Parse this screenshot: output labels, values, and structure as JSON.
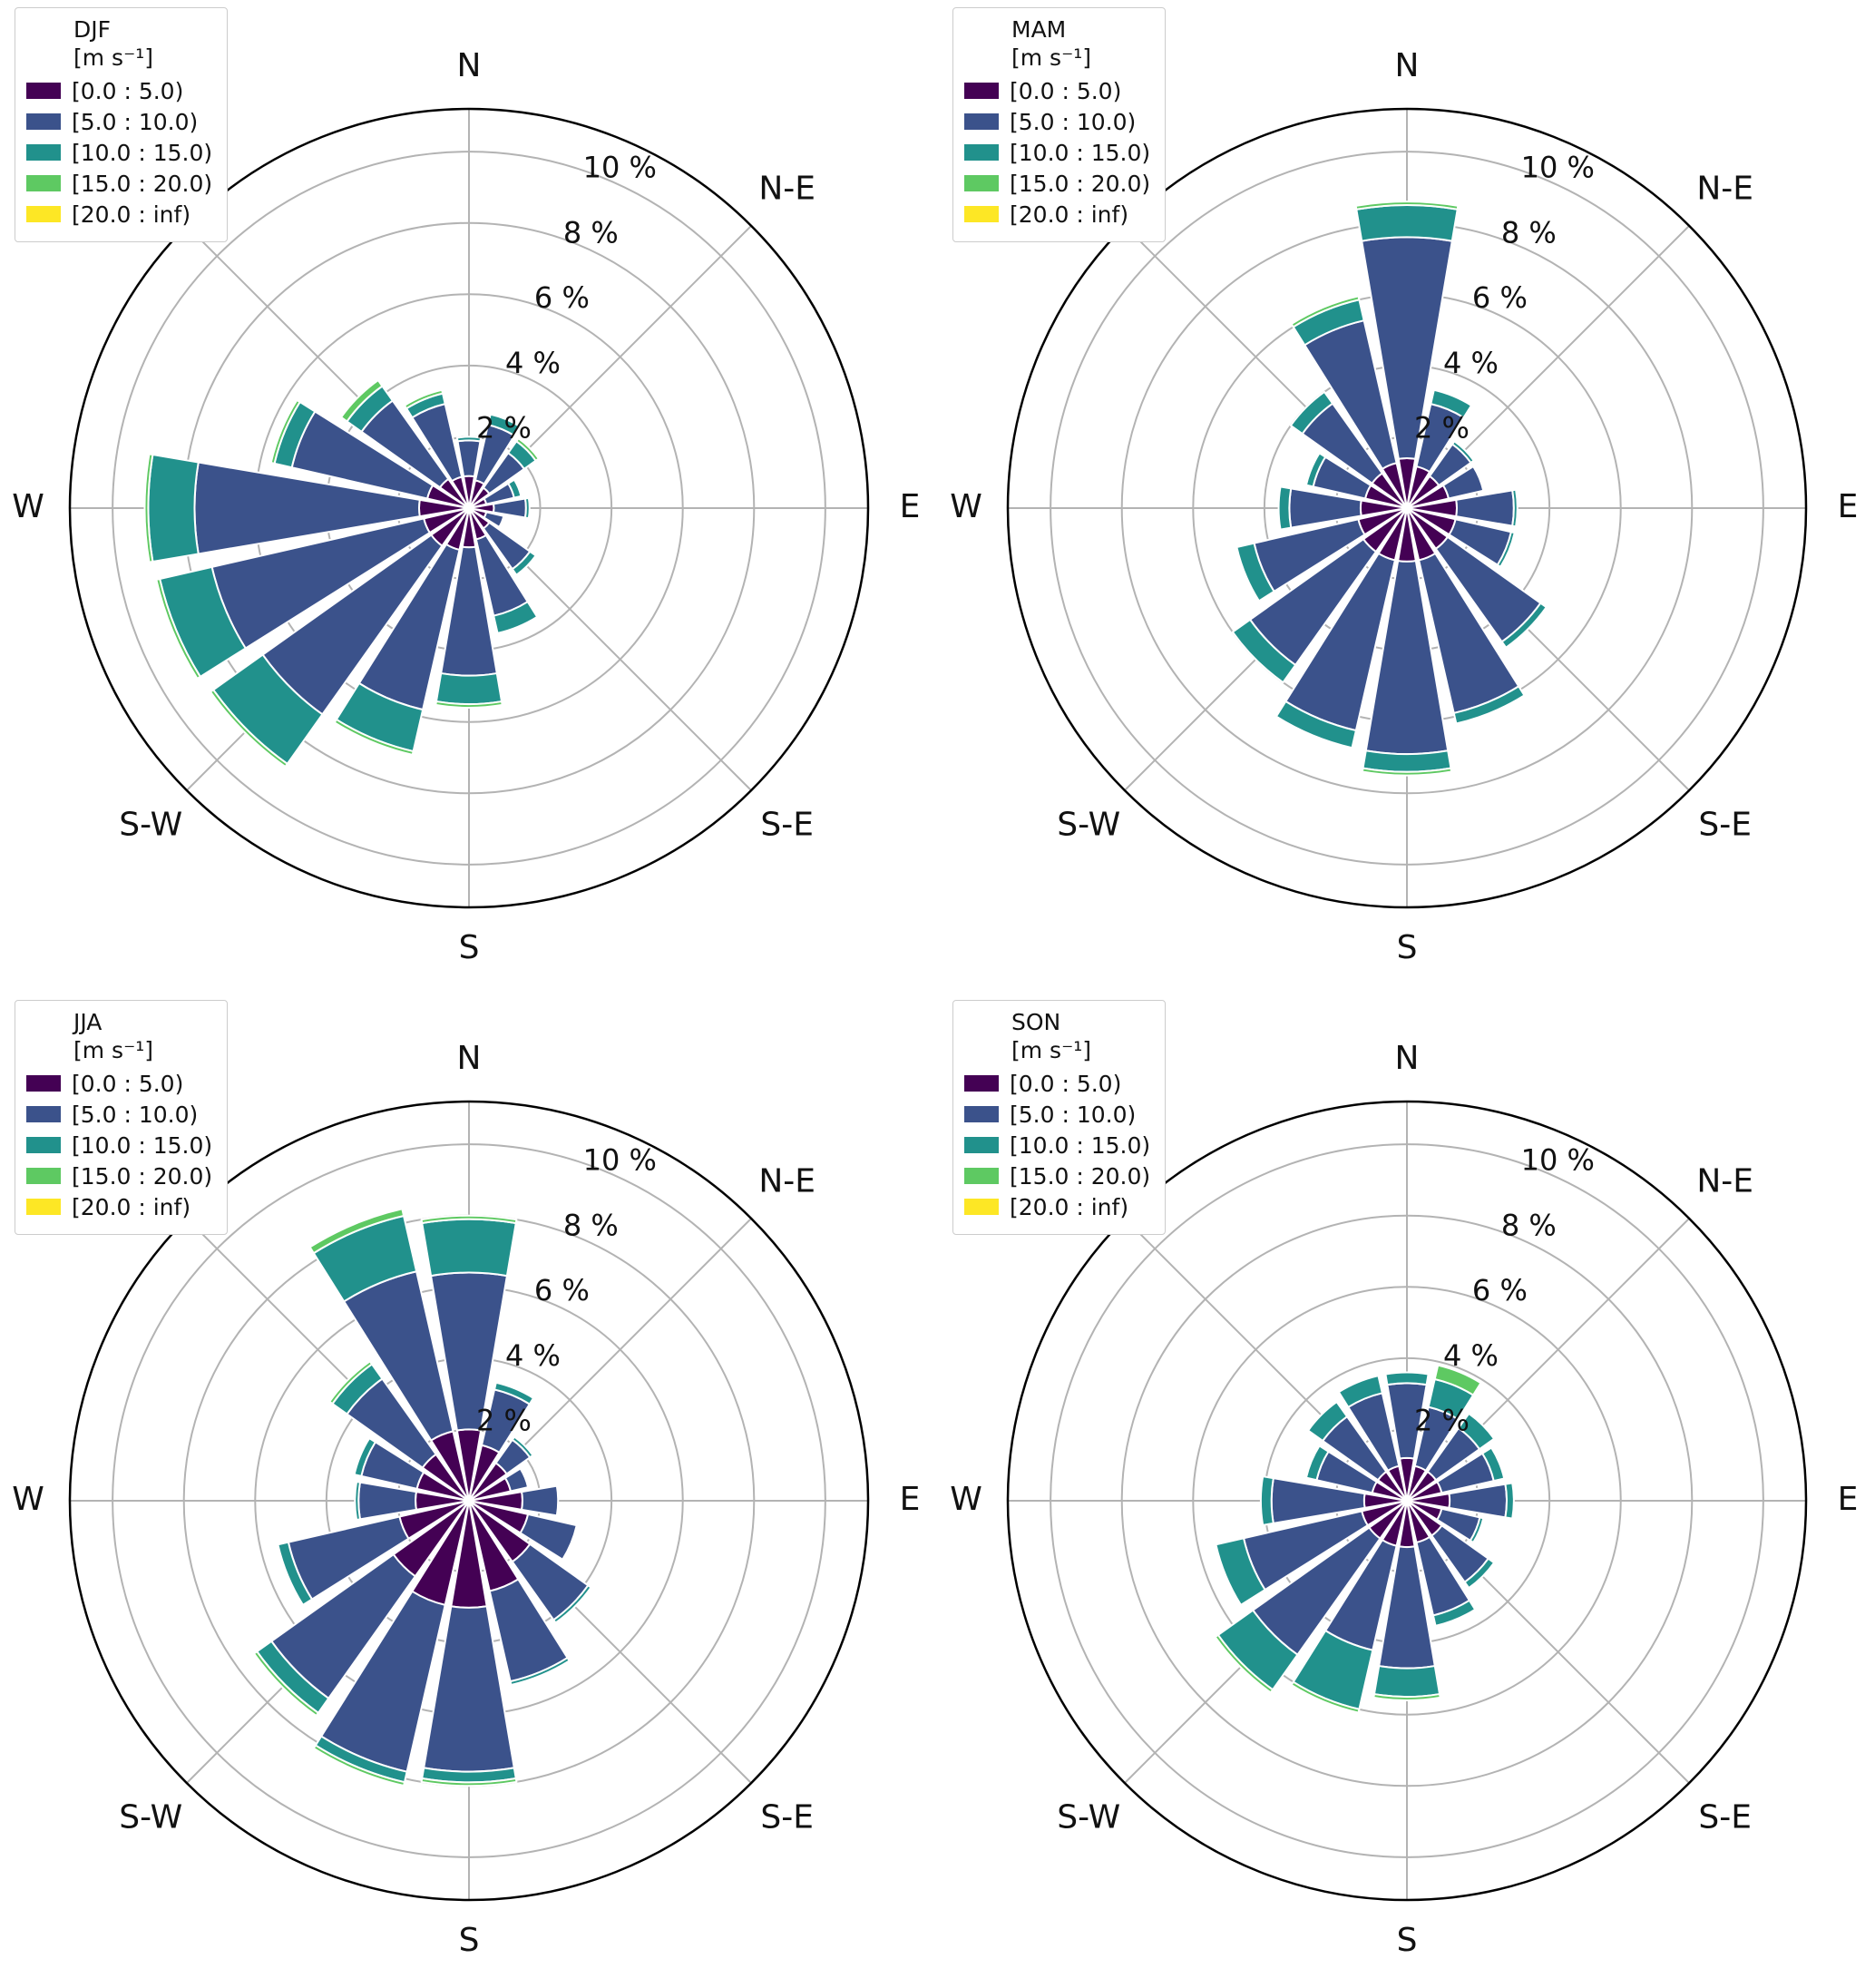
{
  "page": {
    "background": "#ffffff"
  },
  "legend": {
    "units_label": "[m s⁻¹]",
    "bins": [
      {
        "label": "[0.0 : 5.0)",
        "color": "#440154"
      },
      {
        "label": "[5.0 : 10.0)",
        "color": "#3b528b"
      },
      {
        "label": "[10.0 : 15.0)",
        "color": "#21918c"
      },
      {
        "label": "[15.0 : 20.0)",
        "color": "#5ec962"
      },
      {
        "label": "[20.0 : inf)",
        "color": "#fde725"
      }
    ]
  },
  "axes": {
    "ring_ticks": [
      2,
      4,
      6,
      8,
      10
    ],
    "ring_tick_labels": [
      "2 %",
      "4 %",
      "6 %",
      "8 %",
      "10 %"
    ],
    "rmax_percent": 11.2,
    "ring_label_azimuth_deg": 24,
    "grid_color": "#b3b3b3",
    "outline_color": "#000000",
    "direction_labels": [
      {
        "text": "N",
        "deg": 0
      },
      {
        "text": "N-E",
        "deg": 45
      },
      {
        "text": "E",
        "deg": 90
      },
      {
        "text": "S-E",
        "deg": 135
      },
      {
        "text": "S",
        "deg": 180
      },
      {
        "text": "S-W",
        "deg": 225
      },
      {
        "text": "W",
        "deg": 270
      }
    ]
  },
  "chart_data": [
    {
      "type": "bar",
      "subtype": "windrose-polar-stacked",
      "season": "DJF",
      "units": "[m s⁻¹]",
      "r_unit": "percent",
      "rlim": [
        0,
        11.2
      ],
      "grid": true,
      "legend_position": "top-left",
      "directions": [
        "N",
        "NNE",
        "NE",
        "ENE",
        "E",
        "ESE",
        "SE",
        "SSE",
        "S",
        "SSW",
        "SW",
        "WSW",
        "W",
        "WNW",
        "NW",
        "NNW"
      ],
      "series": [
        {
          "name": "[0.0 : 5.0)",
          "color": "#440154",
          "values": [
            0.9,
            0.8,
            0.7,
            0.5,
            0.7,
            0.5,
            0.7,
            0.9,
            1.1,
            1.2,
            1.3,
            1.3,
            1.4,
            1.2,
            1.0,
            0.9
          ]
        },
        {
          "name": "[5.0 : 10.0)",
          "color": "#3b528b",
          "values": [
            1.0,
            1.6,
            1.2,
            0.8,
            0.9,
            0.5,
            1.4,
            2.2,
            3.6,
            4.6,
            5.8,
            6.1,
            6.3,
            3.9,
            2.7,
            2.1
          ]
        },
        {
          "name": "[10.0 : 15.0)",
          "color": "#21918c",
          "values": [
            0.1,
            0.3,
            0.4,
            0.2,
            0.1,
            0.0,
            0.2,
            0.5,
            0.8,
            1.2,
            1.7,
            1.5,
            1.3,
            0.5,
            0.5,
            0.3
          ]
        },
        {
          "name": "[15.0 : 20.0)",
          "color": "#5ec962",
          "values": [
            0.0,
            0.0,
            0.1,
            0.0,
            0.0,
            0.0,
            0.0,
            0.0,
            0.1,
            0.1,
            0.1,
            0.1,
            0.1,
            0.1,
            0.2,
            0.1
          ]
        },
        {
          "name": "[20.0 : inf)",
          "color": "#fde725",
          "values": [
            0,
            0,
            0,
            0,
            0,
            0,
            0,
            0,
            0,
            0,
            0,
            0,
            0,
            0,
            0,
            0
          ]
        }
      ]
    },
    {
      "type": "bar",
      "subtype": "windrose-polar-stacked",
      "season": "MAM",
      "units": "[m s⁻¹]",
      "r_unit": "percent",
      "rlim": [
        0,
        11.2
      ],
      "grid": true,
      "legend_position": "top-left",
      "directions": [
        "N",
        "NNE",
        "NE",
        "ENE",
        "E",
        "ESE",
        "SE",
        "SSE",
        "S",
        "SSW",
        "SW",
        "WSW",
        "W",
        "WNW",
        "NW",
        "NNW"
      ],
      "series": [
        {
          "name": "[0.0 : 5.0)",
          "color": "#440154",
          "values": [
            1.4,
            1.2,
            1.1,
            1.2,
            1.4,
            1.4,
            1.4,
            1.5,
            1.5,
            1.5,
            1.5,
            1.4,
            1.3,
            1.2,
            1.2,
            1.3
          ]
        },
        {
          "name": "[5.0 : 10.0)",
          "color": "#3b528b",
          "values": [
            6.2,
            1.8,
            1.1,
            1.0,
            1.6,
            1.6,
            3.2,
            4.4,
            5.4,
            4.9,
            3.9,
            3.0,
            2.0,
            1.5,
            2.4,
            4.1
          ]
        },
        {
          "name": "[10.0 : 15.0)",
          "color": "#21918c",
          "values": [
            0.9,
            0.4,
            0.1,
            0.0,
            0.1,
            0.1,
            0.2,
            0.3,
            0.5,
            0.5,
            0.6,
            0.5,
            0.3,
            0.2,
            0.4,
            0.6
          ]
        },
        {
          "name": "[15.0 : 20.0)",
          "color": "#5ec962",
          "values": [
            0.1,
            0.0,
            0.0,
            0.0,
            0.0,
            0.0,
            0.0,
            0.0,
            0.1,
            0.0,
            0.0,
            0.0,
            0.0,
            0.0,
            0.0,
            0.1
          ]
        },
        {
          "name": "[20.0 : inf)",
          "color": "#fde725",
          "values": [
            0,
            0,
            0,
            0,
            0,
            0,
            0,
            0,
            0,
            0,
            0,
            0,
            0,
            0,
            0,
            0
          ]
        }
      ]
    },
    {
      "type": "bar",
      "subtype": "windrose-polar-stacked",
      "season": "JJA",
      "units": "[m s⁻¹]",
      "r_unit": "percent",
      "rlim": [
        0,
        11.2
      ],
      "grid": true,
      "legend_position": "top-left",
      "directions": [
        "N",
        "NNE",
        "NE",
        "ENE",
        "E",
        "ESE",
        "SE",
        "SSE",
        "S",
        "SSW",
        "SW",
        "WSW",
        "W",
        "WNW",
        "NW",
        "NNW"
      ],
      "series": [
        {
          "name": "[0.0 : 5.0)",
          "color": "#440154",
          "values": [
            2.0,
            1.6,
            1.3,
            1.2,
            1.5,
            1.7,
            2.1,
            2.6,
            3.0,
            3.0,
            2.6,
            2.0,
            1.5,
            1.5,
            1.6,
            2.0
          ]
        },
        {
          "name": "[5.0 : 10.0)",
          "color": "#3b528b",
          "values": [
            4.4,
            1.6,
            0.8,
            0.5,
            1.0,
            1.4,
            2.0,
            2.6,
            4.6,
            4.8,
            4.2,
            3.2,
            1.6,
            1.6,
            2.6,
            4.6
          ]
        },
        {
          "name": "[10.0 : 15.0)",
          "color": "#21918c",
          "values": [
            1.5,
            0.2,
            0.1,
            0.0,
            0.0,
            0.0,
            0.1,
            0.1,
            0.3,
            0.3,
            0.5,
            0.3,
            0.1,
            0.2,
            0.5,
            1.6
          ]
        },
        {
          "name": "[15.0 : 20.0)",
          "color": "#5ec962",
          "values": [
            0.1,
            0.0,
            0.0,
            0.0,
            0.0,
            0.0,
            0.0,
            0.0,
            0.1,
            0.1,
            0.1,
            0.0,
            0.0,
            0.0,
            0.1,
            0.2
          ]
        },
        {
          "name": "[20.0 : inf)",
          "color": "#fde725",
          "values": [
            0,
            0,
            0,
            0,
            0,
            0,
            0,
            0,
            0,
            0,
            0,
            0,
            0,
            0,
            0,
            0
          ]
        }
      ]
    },
    {
      "type": "bar",
      "subtype": "windrose-polar-stacked",
      "season": "SON",
      "units": "[m s⁻¹]",
      "r_unit": "percent",
      "rlim": [
        0,
        11.2
      ],
      "grid": true,
      "legend_position": "top-left",
      "directions": [
        "N",
        "NNE",
        "NE",
        "ENE",
        "E",
        "ESE",
        "SE",
        "SSE",
        "S",
        "SSW",
        "SW",
        "WSW",
        "W",
        "WNW",
        "NW",
        "NNW"
      ],
      "series": [
        {
          "name": "[0.0 : 5.0)",
          "color": "#440154",
          "values": [
            1.2,
            1.0,
            1.0,
            1.0,
            1.2,
            1.0,
            1.2,
            1.2,
            1.3,
            1.3,
            1.3,
            1.3,
            1.2,
            1.0,
            1.0,
            1.0
          ]
        },
        {
          "name": "[5.0 : 10.0)",
          "color": "#3b528b",
          "values": [
            2.1,
            1.7,
            1.5,
            1.5,
            1.6,
            1.1,
            1.6,
            2.1,
            3.4,
            3.0,
            4.0,
            3.4,
            2.6,
            1.6,
            1.9,
            2.1
          ]
        },
        {
          "name": "[10.0 : 15.0)",
          "color": "#21918c",
          "values": [
            0.3,
            0.8,
            0.5,
            0.3,
            0.2,
            0.1,
            0.2,
            0.3,
            0.8,
            1.7,
            1.2,
            0.8,
            0.3,
            0.3,
            0.5,
            0.5
          ]
        },
        {
          "name": "[15.0 : 20.0)",
          "color": "#5ec962",
          "values": [
            0.0,
            0.4,
            0.0,
            0.0,
            0.0,
            0.0,
            0.0,
            0.0,
            0.1,
            0.1,
            0.1,
            0.0,
            0.0,
            0.0,
            0.0,
            0.0
          ]
        },
        {
          "name": "[20.0 : inf)",
          "color": "#fde725",
          "values": [
            0,
            0,
            0,
            0,
            0,
            0,
            0,
            0,
            0,
            0,
            0,
            0,
            0,
            0,
            0,
            0
          ]
        }
      ]
    }
  ]
}
